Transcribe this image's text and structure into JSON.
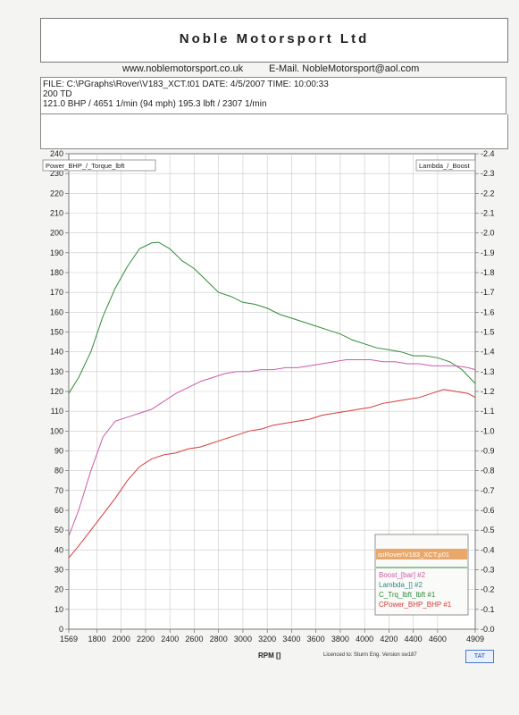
{
  "header": {
    "title": "Noble Motorsport Ltd",
    "website": "www.noblemotorsport.co.uk",
    "email": "E-Mail. NobleMotorsport@aol.com"
  },
  "info": {
    "line1": "FILE: C:\\PGraphs\\Rover\\V183_XCT.t01  DATE: 4/5/2007  TIME: 10:00:33",
    "line2": "200 TD",
    "line3": "121.0 BHP / 4651 1/min (94 mph)    195.3 lbft / 2307 1/min"
  },
  "footer": {
    "licence": "Licenced to: Sturm Eng.  Version sw187",
    "button": "TAT"
  },
  "chart_data": {
    "type": "line",
    "xlabel": "RPM  []",
    "left_axis_label": "Power_BHP_/_Torque_lbft",
    "right_axis_label": "Lambda_/_Boost",
    "xlim": [
      1569,
      4909
    ],
    "ylim": [
      0,
      240
    ],
    "y2lim": [
      0,
      -2.4
    ],
    "x_ticks": [
      1569,
      1800,
      2000,
      2200,
      2400,
      2600,
      2800,
      3000,
      3200,
      3400,
      3600,
      3800,
      4000,
      4200,
      4400,
      4600,
      4909
    ],
    "y_ticks": [
      0,
      10,
      20,
      30,
      40,
      50,
      60,
      70,
      80,
      90,
      100,
      110,
      120,
      130,
      140,
      150,
      160,
      170,
      180,
      190,
      200,
      210,
      220,
      230,
      240
    ],
    "y2_ticks": [
      "-0.0",
      "-0.1",
      "-0.2",
      "-0.3",
      "-0.4",
      "-0.5",
      "-0.6",
      "-0.7",
      "-0.8",
      "-0.9",
      "-1.0",
      "-1.1",
      "-1.2",
      "-1.3",
      "-1.4",
      "-1.5",
      "-1.6",
      "-1.7",
      "-1.8",
      "-1.9",
      "-2.0",
      "-2.1",
      "-2.2",
      "-2.3",
      "-2.4"
    ],
    "grid": true,
    "legend": {
      "title": "istRover\\V183_XCT.p01",
      "placement": "bottom-right",
      "entries": [
        "Boost_[bar] #2",
        "Lambda_[] #2",
        "C_Trq_lbft_lbft #1",
        "CPower_BHP_BHP #1"
      ]
    },
    "series": [
      {
        "name": "C_Trq_lbft_lbft #1",
        "color": "#2e8b3a",
        "x": [
          1569,
          1650,
          1750,
          1850,
          1950,
          2050,
          2150,
          2250,
          2307,
          2400,
          2500,
          2600,
          2700,
          2800,
          2900,
          3000,
          3100,
          3200,
          3300,
          3400,
          3500,
          3600,
          3700,
          3800,
          3900,
          4000,
          4100,
          4200,
          4300,
          4400,
          4500,
          4600,
          4700,
          4800,
          4909
        ],
        "values": [
          119,
          127,
          140,
          158,
          172,
          183,
          192,
          195,
          195.3,
          192,
          186,
          182,
          176,
          170,
          168,
          165,
          164,
          162,
          159,
          157,
          155,
          153,
          151,
          149,
          146,
          144,
          142,
          141,
          140,
          138,
          138,
          137,
          135,
          131,
          124
        ]
      },
      {
        "name": "Boost_[bar] #2",
        "color": "#cc5aa8",
        "x": [
          1569,
          1650,
          1750,
          1850,
          1950,
          2050,
          2150,
          2250,
          2350,
          2450,
          2550,
          2650,
          2750,
          2850,
          2950,
          3050,
          3150,
          3250,
          3350,
          3450,
          3550,
          3650,
          3750,
          3850,
          3950,
          4050,
          4150,
          4250,
          4350,
          4450,
          4550,
          4650,
          4750,
          4850,
          4909
        ],
        "values": [
          -0.47,
          -0.6,
          -0.8,
          -0.97,
          -1.05,
          -1.07,
          -1.09,
          -1.11,
          -1.15,
          -1.19,
          -1.22,
          -1.25,
          -1.27,
          -1.29,
          -1.3,
          -1.3,
          -1.31,
          -1.31,
          -1.32,
          -1.32,
          -1.33,
          -1.34,
          -1.35,
          -1.36,
          -1.36,
          -1.36,
          -1.35,
          -1.35,
          -1.34,
          -1.34,
          -1.33,
          -1.33,
          -1.33,
          -1.32,
          -1.31
        ]
      },
      {
        "name": "CPower_BHP_BHP #1",
        "color": "#d63b3b",
        "x": [
          1569,
          1650,
          1750,
          1850,
          1950,
          2050,
          2150,
          2250,
          2350,
          2450,
          2550,
          2650,
          2750,
          2850,
          2950,
          3050,
          3150,
          3250,
          3350,
          3450,
          3550,
          3650,
          3750,
          3850,
          3950,
          4050,
          4150,
          4250,
          4350,
          4450,
          4550,
          4651,
          4750,
          4850,
          4909
        ],
        "values": [
          36,
          42,
          50,
          58,
          66,
          75,
          82,
          86,
          88,
          89,
          91,
          92,
          94,
          96,
          98,
          100,
          101,
          103,
          104,
          105,
          106,
          108,
          109,
          110,
          111,
          112,
          114,
          115,
          116,
          117,
          119,
          121,
          120,
          119,
          117
        ]
      }
    ]
  }
}
